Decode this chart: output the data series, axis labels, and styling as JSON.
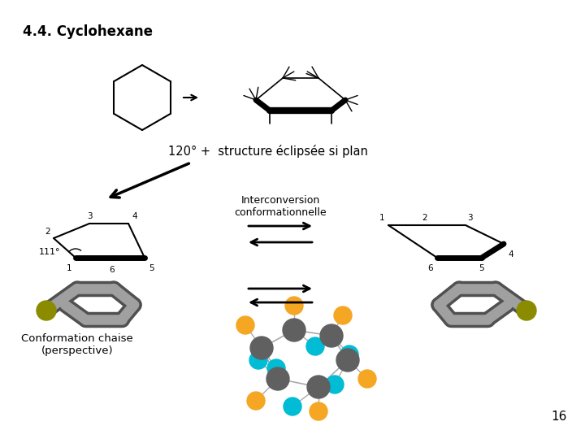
{
  "title": "4.4. Cyclohexane",
  "subtitle": "120° +  structure éclipsée si plan",
  "interconversion_text": "Interconversion\nconformationnelle",
  "conformation_text": "Conformation chaise\n(perspective)",
  "page_number": "16",
  "bg_color": "#ffffff",
  "text_color": "#000000",
  "orange_color": "#f5a623",
  "cyan_color": "#00bcd4",
  "gray_mol_color": "#606060",
  "olive_color": "#8b8b00",
  "tube_gray": "#a0a0a0",
  "tube_dark": "#505050"
}
